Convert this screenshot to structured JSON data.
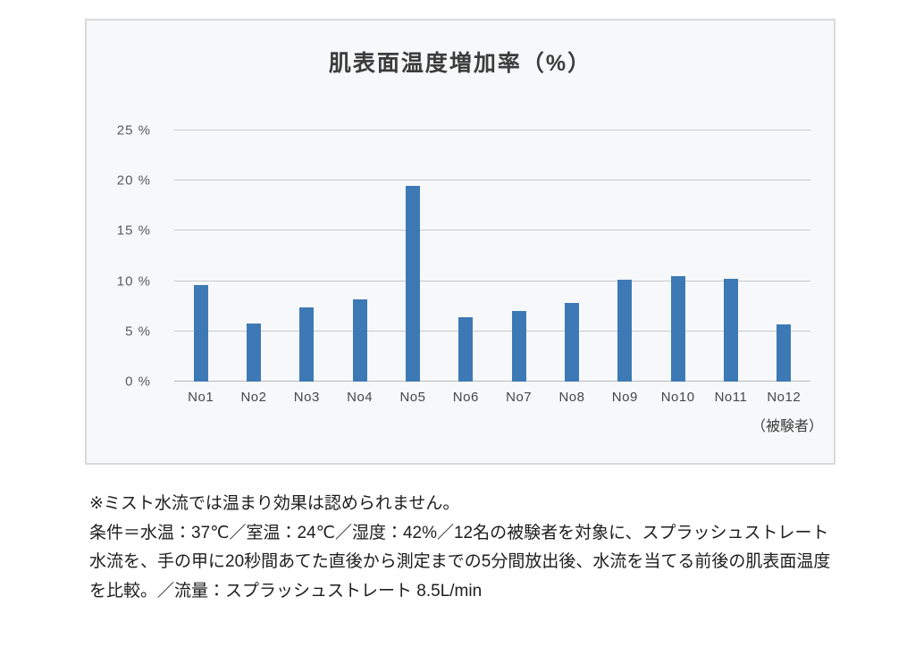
{
  "chart_data": {
    "type": "bar",
    "title": "肌表面温度増加率（%）",
    "categories": [
      "No1",
      "No2",
      "No3",
      "No4",
      "No5",
      "No6",
      "No7",
      "No8",
      "No9",
      "No10",
      "No11",
      "No12"
    ],
    "values": [
      9.6,
      5.8,
      7.4,
      8.2,
      19.5,
      6.4,
      7.0,
      7.8,
      10.1,
      10.5,
      10.2,
      5.7
    ],
    "xlabel": "",
    "ylabel": "",
    "ylim": [
      0,
      25
    ],
    "yticks": [
      0,
      5,
      10,
      15,
      20,
      25
    ],
    "ytick_suffix": " %",
    "xaxis_note": "（被験者）",
    "bar_color": "#3d7ab5",
    "grid": true,
    "legend": "none",
    "panel_background": "#f7f8f9",
    "panel_border_color": "#d9d9d9"
  },
  "footnote": {
    "line1": "※ミスト水流では温まり効果は認められません。",
    "line2": "条件＝水温：37℃／室温：24℃／湿度：42%／12名の被験者を対象に、スプラッシュストレート水流を、手の甲に20秒間あてた直後から測定までの5分間放出後、水流を当てる前後の肌表面温度を比較。／流量：スプラッシュストレート 8.5L/min"
  }
}
